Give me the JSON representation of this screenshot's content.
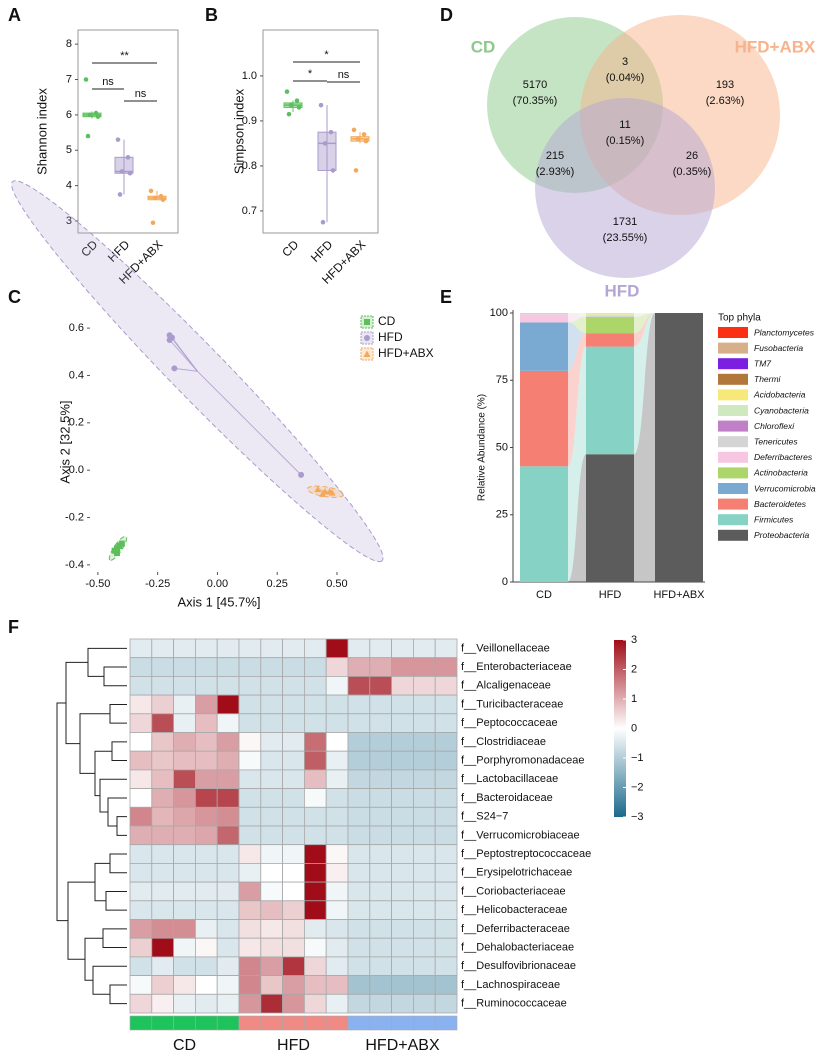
{
  "chart_data": [
    {
      "panel": "A",
      "type": "box",
      "ylabel": "Shannon index",
      "ylim": [
        2.66,
        8.4
      ],
      "yticks": [
        3,
        4,
        5,
        6,
        7,
        8
      ],
      "series": [
        {
          "name": "CD",
          "color": "#5cbf5c",
          "box": [
            5.9,
            5.95,
            6.0,
            6.05,
            6.1
          ],
          "points": [
            7.0,
            6.05,
            6.0,
            5.95,
            5.4
          ]
        },
        {
          "name": "HFD",
          "color": "#a99bcc",
          "box": [
            3.75,
            4.35,
            4.4,
            4.8,
            5.3
          ],
          "points": [
            5.3,
            4.8,
            4.4,
            4.35,
            3.75
          ]
        },
        {
          "name": "HFD+ABX",
          "color": "#f4a95a",
          "box": [
            3.6,
            3.6,
            3.65,
            3.7,
            3.85
          ],
          "points": [
            3.85,
            3.7,
            3.65,
            3.6,
            2.95
          ]
        }
      ],
      "comparisons": [
        {
          "label": "**",
          "between": [
            0,
            2
          ]
        },
        {
          "label": "ns",
          "between": [
            0,
            1
          ]
        },
        {
          "label": "ns",
          "between": [
            1,
            2
          ]
        }
      ]
    },
    {
      "panel": "B",
      "type": "box",
      "ylabel": "Simpson index",
      "ylim": [
        0.651,
        1.102
      ],
      "yticks": [
        0.7,
        0.8,
        0.9,
        {
          "value": 1,
          "label": "1.0"
        }
      ],
      "series": [
        {
          "name": "CD",
          "color": "#5cbf5c",
          "box": [
            0.92,
            0.93,
            0.935,
            0.94,
            0.945
          ],
          "points": [
            0.965,
            0.945,
            0.935,
            0.93,
            0.915
          ]
        },
        {
          "name": "HFD",
          "color": "#a99bcc",
          "box": [
            0.675,
            0.79,
            0.85,
            0.875,
            0.935
          ],
          "points": [
            0.935,
            0.875,
            0.85,
            0.79,
            0.675
          ]
        },
        {
          "name": "HFD+ABX",
          "color": "#f4a95a",
          "box": [
            0.85,
            0.855,
            0.86,
            0.865,
            0.875
          ],
          "points": [
            0.88,
            0.87,
            0.86,
            0.855,
            0.79
          ]
        }
      ],
      "comparisons": [
        {
          "label": "*",
          "between": [
            0,
            2
          ]
        },
        {
          "label": "*",
          "between": [
            0,
            1
          ]
        },
        {
          "label": "ns",
          "between": [
            1,
            2
          ]
        }
      ]
    },
    {
      "panel": "C",
      "type": "scatter",
      "xlabel": "Axis 1 [45.7%]",
      "ylabel": "Axis 2 [32.5%]",
      "xlim": [
        -0.533,
        0.588
      ],
      "ylim": [
        -0.43,
        0.668
      ],
      "xticks": [
        {
          "value": -0.5,
          "label": "-0.50"
        },
        -0.25,
        {
          "value": 0,
          "label": "0.00"
        },
        0.25,
        {
          "value": 0.5,
          "label": "0.50"
        }
      ],
      "yticks": [
        -0.4,
        -0.2,
        {
          "value": 0,
          "label": "0.0"
        },
        0.2,
        0.4,
        0.6
      ],
      "series": [
        {
          "name": "CD",
          "color": "#5cbf5c",
          "marker": "square",
          "x": [
            -0.42,
            -0.41,
            -0.43,
            -0.42,
            -0.4
          ],
          "y": [
            -0.33,
            -0.32,
            -0.34,
            -0.35,
            -0.31
          ]
        },
        {
          "name": "HFD",
          "color": "#a99bcc",
          "marker": "circle",
          "x": [
            -0.2,
            -0.2,
            -0.19,
            -0.18,
            0.35
          ],
          "y": [
            0.57,
            0.55,
            0.56,
            0.43,
            -0.02
          ]
        },
        {
          "name": "HFD+ABX",
          "color": "#f4a95a",
          "marker": "triangle",
          "x": [
            0.42,
            0.45,
            0.47,
            0.44,
            0.48
          ],
          "y": [
            -0.08,
            -0.09,
            -0.09,
            -0.1,
            -0.095
          ]
        }
      ]
    },
    {
      "panel": "D",
      "type": "venn",
      "sets": [
        {
          "name": "CD",
          "color": "#8cc98a"
        },
        {
          "name": "HFD+ABX",
          "color": "#f7b38c"
        },
        {
          "name": "HFD",
          "color": "#b3a6d3"
        }
      ],
      "values": [
        5170,
        3,
        193,
        11,
        215,
        26,
        1731
      ],
      "percents": [
        70.35,
        0.04,
        2.63,
        0.15,
        2.93,
        0.35,
        23.55
      ],
      "percent_labels": [
        "(70.35%)",
        "(0.04%)",
        "(2.63%)",
        "(0.15%)",
        "(2.93%)",
        "(0.35%)",
        "(23.55%)"
      ]
    },
    {
      "panel": "E",
      "type": "stacked_bar",
      "ylabel": "Relative Abundance (%)",
      "legend_title": "Top phyla",
      "categories": [
        "CD",
        "HFD",
        "HFD+ABX"
      ],
      "ylim": [
        0,
        100
      ],
      "yticks": [
        0,
        25,
        50,
        75,
        100
      ],
      "series": [
        {
          "name": "Planctomycetes",
          "color": "#fb2f14",
          "values": [
            0,
            0,
            0
          ]
        },
        {
          "name": "Fusobacteria",
          "color": "#d6b08a",
          "values": [
            0,
            0,
            0
          ]
        },
        {
          "name": "TM7",
          "color": "#7b1fe0",
          "values": [
            0,
            0,
            0
          ]
        },
        {
          "name": "Thermi",
          "color": "#b2773a",
          "values": [
            0,
            0,
            0
          ]
        },
        {
          "name": "Acidobacteria",
          "color": "#f7e87a",
          "values": [
            0,
            0.5,
            0
          ]
        },
        {
          "name": "Cyanobacteria",
          "color": "#cfe8c0",
          "values": [
            0,
            0.5,
            0
          ]
        },
        {
          "name": "Chloroflexi",
          "color": "#c080c8",
          "values": [
            0,
            0,
            0
          ]
        },
        {
          "name": "Tenericutes",
          "color": "#d4d4d4",
          "values": [
            0.5,
            0.5,
            0
          ]
        },
        {
          "name": "Deferribacteres",
          "color": "#f7c6e0",
          "values": [
            3,
            0,
            0
          ]
        },
        {
          "name": "Actinobacteria",
          "color": "#acd66a",
          "values": [
            0,
            6,
            0
          ]
        },
        {
          "name": "Verrucomicrobia",
          "color": "#7aa9d2",
          "values": [
            18,
            0,
            0
          ]
        },
        {
          "name": "Bacteroidetes",
          "color": "#f47f72",
          "values": [
            35.5,
            5,
            0
          ]
        },
        {
          "name": "Firmicutes",
          "color": "#86d3c6",
          "values": [
            43,
            40,
            0
          ]
        },
        {
          "name": "Proteobacteria",
          "color": "#5c5c5c",
          "values": [
            0,
            47.5,
            100
          ]
        }
      ]
    },
    {
      "panel": "F",
      "type": "heatmap",
      "rows": [
        "f__Veillonellaceae",
        "f__Enterobacteriaceae",
        "f__Alcaligenaceae",
        "f__Turicibacteraceae",
        "f__Peptococcaceae",
        "f__Clostridiaceae",
        "f__Porphyromonadaceae",
        "f__Lactobacillaceae",
        "f__Bacteroidaceae",
        "f__S24−7",
        "f__Verrucomicrobiaceae",
        "f__Peptostreptococcaceae",
        "f__Erysipelotrichaceae",
        "f__Coriobacteriaceae",
        "f__Helicobacteraceae",
        "f__Deferribacteraceae",
        "f__Dehalobacteriaceae",
        "f__Desulfovibrionaceae",
        "f__Lachnospiraceae",
        "f__Ruminococcaceae"
      ],
      "groups": [
        {
          "name": "CD",
          "color": "#1ec35b",
          "columns": 5
        },
        {
          "name": "HFD",
          "color": "#f08a84",
          "columns": 5
        },
        {
          "name": "HFD+ABX",
          "color": "#8ab2f0",
          "columns": 5
        }
      ],
      "values": [
        [
          -0.4,
          -0.4,
          -0.4,
          -0.4,
          -0.4,
          -0.4,
          -0.4,
          -0.4,
          -0.4,
          3,
          -0.4,
          -0.4,
          -0.4,
          -0.4,
          -0.4
        ],
        [
          -0.7,
          -0.7,
          -0.7,
          -0.7,
          -0.7,
          -0.7,
          -0.7,
          -0.7,
          -0.7,
          0.5,
          1,
          1,
          1.3,
          1.3,
          1.3
        ],
        [
          -0.6,
          -0.6,
          -0.6,
          -0.6,
          -0.6,
          -0.6,
          -0.6,
          -0.6,
          -0.6,
          -0.2,
          2.2,
          2.2,
          0.5,
          0.5,
          0.5
        ],
        [
          0.3,
          0.6,
          -0.3,
          1.2,
          3,
          -0.6,
          -0.6,
          -0.6,
          -0.6,
          -0.6,
          -0.6,
          -0.6,
          -0.6,
          -0.6,
          -0.6
        ],
        [
          0.5,
          2.2,
          -0.3,
          0.8,
          -0.2,
          -0.6,
          -0.6,
          -0.6,
          -0.6,
          -0.6,
          -0.6,
          -0.6,
          -0.6,
          -0.6,
          -0.6
        ],
        [
          0,
          0.7,
          1,
          0.8,
          1.2,
          0.1,
          -0.4,
          -0.4,
          1.8,
          0,
          -1,
          -1,
          -1,
          -1,
          -1
        ],
        [
          0.8,
          0.7,
          0.8,
          0.8,
          1,
          -0.1,
          -0.5,
          -0.5,
          2,
          -0.3,
          -1,
          -1,
          -1,
          -1,
          -1
        ],
        [
          0.3,
          0.8,
          2.2,
          1.2,
          1.2,
          -0.5,
          -0.5,
          -0.5,
          0.8,
          -0.3,
          -0.8,
          -0.8,
          -0.8,
          -0.8,
          -0.8
        ],
        [
          0,
          1,
          1.3,
          2.3,
          2.3,
          -0.6,
          -0.6,
          -0.6,
          -0.1,
          -0.6,
          -0.7,
          -0.7,
          -0.7,
          -0.7,
          -0.7
        ],
        [
          1.5,
          0.9,
          1.1,
          1.3,
          1.4,
          -0.6,
          -0.6,
          -0.6,
          -0.6,
          -0.6,
          -0.7,
          -0.7,
          -0.7,
          -0.7,
          -0.7
        ],
        [
          1,
          1,
          1,
          1.1,
          1.9,
          -0.6,
          -0.6,
          -0.6,
          -0.6,
          -0.6,
          -0.7,
          -0.7,
          -0.7,
          -0.7,
          -0.7
        ],
        [
          -0.5,
          -0.5,
          -0.5,
          -0.5,
          -0.5,
          0.3,
          -0.2,
          -0.2,
          3,
          0.1,
          -0.5,
          -0.5,
          -0.5,
          -0.5,
          -0.5
        ],
        [
          -0.5,
          -0.5,
          -0.5,
          -0.5,
          -0.5,
          -0.3,
          0,
          0,
          3,
          0.2,
          -0.5,
          -0.5,
          -0.5,
          -0.5,
          -0.5
        ],
        [
          -0.4,
          -0.4,
          -0.4,
          -0.4,
          -0.4,
          1.2,
          -0.1,
          0,
          3,
          -0.2,
          -0.5,
          -0.5,
          -0.5,
          -0.5,
          -0.5
        ],
        [
          -0.5,
          -0.5,
          -0.5,
          -0.5,
          -0.5,
          0.7,
          0.8,
          0.6,
          3,
          -0.2,
          -0.5,
          -0.5,
          -0.5,
          -0.5,
          -0.5
        ],
        [
          1.2,
          1.4,
          1.4,
          -0.3,
          -0.5,
          0.4,
          0.3,
          0.4,
          -0.4,
          -0.5,
          -0.6,
          -0.6,
          -0.6,
          -0.6,
          -0.6
        ],
        [
          0.6,
          3,
          -0.2,
          0.1,
          -0.5,
          0.3,
          0.4,
          0.4,
          -0.1,
          -0.4,
          -0.6,
          -0.6,
          -0.6,
          -0.6,
          -0.6
        ],
        [
          -0.6,
          -0.4,
          -0.6,
          -0.6,
          -0.4,
          1.5,
          1.2,
          2.5,
          0.5,
          -0.4,
          -0.6,
          -0.6,
          -0.6,
          -0.6,
          -0.6
        ],
        [
          -0.1,
          0.6,
          0.3,
          0,
          -0.2,
          1.5,
          0.7,
          1.2,
          0.8,
          0.8,
          -1.2,
          -1.2,
          -1.2,
          -1.2,
          -1.2
        ],
        [
          0.5,
          0.2,
          -0.3,
          -0.4,
          -0.3,
          1.3,
          2.6,
          1.3,
          0.5,
          -0.3,
          -0.8,
          -0.8,
          -0.8,
          -0.8,
          -0.8
        ]
      ],
      "zlim": [
        -3,
        3
      ],
      "zticks": [
        {
          "value": -3,
          "label": "−3"
        },
        {
          "value": -2,
          "label": "−2"
        },
        {
          "value": -1,
          "label": "−1"
        },
        0,
        1,
        2,
        3
      ],
      "colors": [
        "#1b6a8c",
        "#ffffff",
        "#a00d18"
      ]
    }
  ]
}
